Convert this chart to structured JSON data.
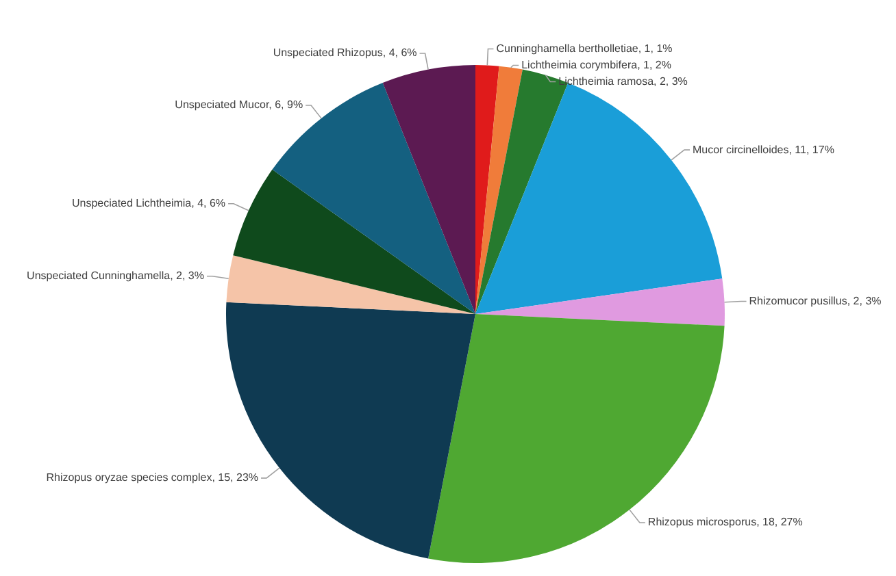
{
  "chart_data": {
    "type": "pie",
    "categories": [
      "Cunninghamella bertholletiae",
      "Lichtheimia corymbifera",
      "Lichtheimia ramosa",
      "Mucor circinelloides",
      "Rhizomucor pusillus",
      "Rhizopus microsporus",
      "Rhizopus oryzae species complex",
      "Unspeciated Cunninghamella",
      "Unspeciated Lichtheimia",
      "Unspeciated Mucor",
      "Unspeciated Rhizopus"
    ],
    "values": [
      1,
      1,
      2,
      11,
      2,
      18,
      15,
      2,
      4,
      6,
      4
    ],
    "value_labels": [
      "1, 1%",
      "1, 2%",
      "2, 3%",
      "11, 17%",
      "2, 3%",
      "18, 27%",
      "15, 23%",
      "2, 3%",
      "4, 6%",
      "6, 9%",
      "4, 6%"
    ],
    "colors": [
      "#e01b1b",
      "#f07c3a",
      "#267a2e",
      "#1a9ed8",
      "#e09ae0",
      "#4fa832",
      "#0f3a52",
      "#f5c4a8",
      "#0f4a1c",
      "#146080",
      "#5c1a52"
    ],
    "legend": false
  }
}
